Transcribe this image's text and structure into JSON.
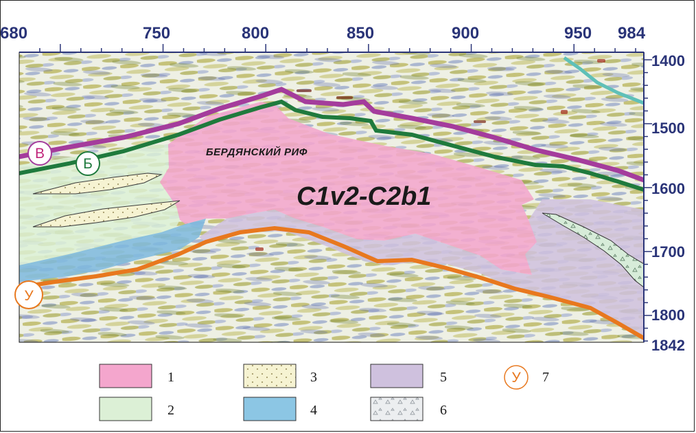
{
  "axes": {
    "top_ticks": [
      "680",
      "750",
      "800",
      "850",
      "900",
      "950",
      "984"
    ],
    "right_ticks": [
      "1400",
      "1500",
      "1600",
      "1700",
      "1800",
      "1842"
    ]
  },
  "horizons": [
    {
      "id": "В",
      "color": "#a43c9c"
    },
    {
      "id": "Б",
      "color": "#1f7a3d"
    },
    {
      "id": "У",
      "color": "#e8781e"
    }
  ],
  "labels": {
    "reef_name": "БЕРДЯНСКИЙ РИФ",
    "age": "C1v2-C2b1"
  },
  "legend": [
    {
      "num": "1",
      "fill": "#f4a6cd",
      "pattern": "solid"
    },
    {
      "num": "2",
      "fill": "#dcf0d6",
      "pattern": "solid"
    },
    {
      "num": "3",
      "fill": "#f6f3d2",
      "pattern": "dots"
    },
    {
      "num": "4",
      "fill": "#8cc6e4",
      "pattern": "solid"
    },
    {
      "num": "5",
      "fill": "#cfc1de",
      "pattern": "solid"
    },
    {
      "num": "6",
      "fill": "#eceef0",
      "pattern": "triangles"
    },
    {
      "num": "7",
      "marker": "У"
    }
  ]
}
